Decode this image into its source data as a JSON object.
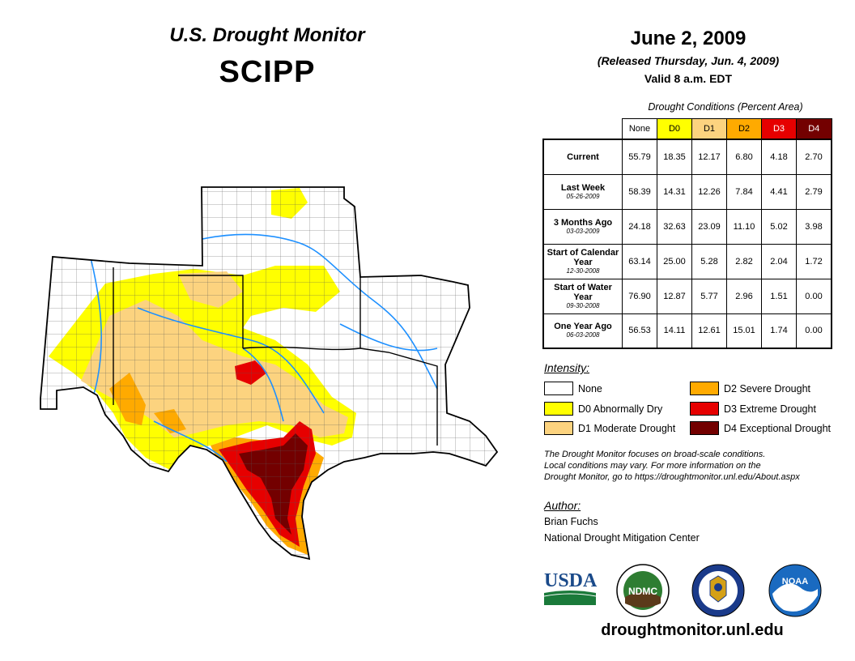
{
  "header": {
    "title": "U.S. Drought Monitor",
    "region": "SCIPP"
  },
  "date": {
    "title": "June 2, 2009",
    "released": "(Released Thursday, Jun. 4, 2009)",
    "valid": "Valid 8 a.m. EDT"
  },
  "table": {
    "caption": "Drought Conditions (Percent Area)",
    "columns": [
      "None",
      "D0",
      "D1",
      "D2",
      "D3",
      "D4"
    ],
    "column_colors": [
      "#ffffff",
      "#ffff00",
      "#fcd37f",
      "#ffaa00",
      "#e60000",
      "#730000"
    ],
    "rows": [
      {
        "label": "Current",
        "date": "",
        "values": [
          "55.79",
          "18.35",
          "12.17",
          "6.80",
          "4.18",
          "2.70"
        ]
      },
      {
        "label": "Last Week",
        "date": "05-26-2009",
        "values": [
          "58.39",
          "14.31",
          "12.26",
          "7.84",
          "4.41",
          "2.79"
        ]
      },
      {
        "label": "3 Months Ago",
        "date": "03-03-2009",
        "values": [
          "24.18",
          "32.63",
          "23.09",
          "11.10",
          "5.02",
          "3.98"
        ]
      },
      {
        "label": "Start of Calendar Year",
        "date": "12-30-2008",
        "values": [
          "63.14",
          "25.00",
          "5.28",
          "2.82",
          "2.04",
          "1.72"
        ]
      },
      {
        "label": "Start of Water Year",
        "date": "09-30-2008",
        "values": [
          "76.90",
          "12.87",
          "5.77",
          "2.96",
          "1.51",
          "0.00"
        ]
      },
      {
        "label": "One Year Ago",
        "date": "06-03-2008",
        "values": [
          "56.53",
          "14.11",
          "12.61",
          "15.01",
          "1.74",
          "0.00"
        ]
      }
    ]
  },
  "legend": {
    "heading": "Intensity:",
    "items": [
      {
        "label": "None",
        "color": "#ffffff"
      },
      {
        "label": "D0 Abnormally Dry",
        "color": "#ffff00"
      },
      {
        "label": "D1 Moderate Drought",
        "color": "#fcd37f"
      },
      {
        "label": "D2 Severe Drought",
        "color": "#ffaa00"
      },
      {
        "label": "D3 Extreme Drought",
        "color": "#e60000"
      },
      {
        "label": "D4 Exceptional Drought",
        "color": "#730000"
      }
    ]
  },
  "disclaimer": [
    "The Drought Monitor focuses on broad-scale conditions.",
    "Local conditions may vary. For more information on the",
    "Drought Monitor, go to https://droughtmonitor.unl.edu/About.aspx"
  ],
  "author": {
    "heading": "Author:",
    "name": "Brian Fuchs",
    "org": "National Drought Mitigation Center"
  },
  "logos": {
    "usda": "USDA",
    "ndmc": "NDMC",
    "noaa": "NOAA"
  },
  "footer": {
    "url": "droughtmonitor.unl.edu"
  }
}
